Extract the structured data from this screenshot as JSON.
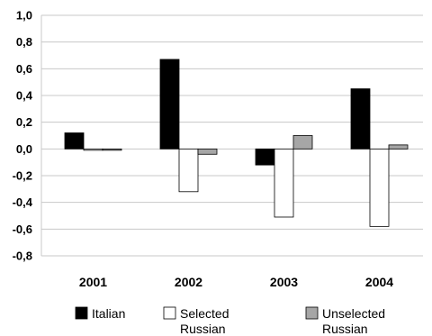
{
  "chart_data": {
    "type": "bar",
    "categories": [
      "2001",
      "2002",
      "2003",
      "2004"
    ],
    "series": [
      {
        "name": "Italian",
        "values": [
          0.12,
          0.67,
          -0.12,
          0.45
        ],
        "color": "#000000"
      },
      {
        "name": "Selected Russian",
        "values": [
          -0.01,
          -0.32,
          -0.51,
          -0.58
        ],
        "color": "#ffffff"
      },
      {
        "name": "Unselected Russian",
        "values": [
          -0.01,
          -0.04,
          0.1,
          0.03
        ],
        "color": "#a6a6a6"
      }
    ],
    "ylim": [
      -0.8,
      1.0
    ],
    "yticks": [
      "1,0",
      "0,8",
      "0,6",
      "0,4",
      "0,2",
      "0,0",
      "-0,2",
      "-0,4",
      "-0,6",
      "-0,8"
    ],
    "grid": true,
    "legend_position": "bottom"
  }
}
